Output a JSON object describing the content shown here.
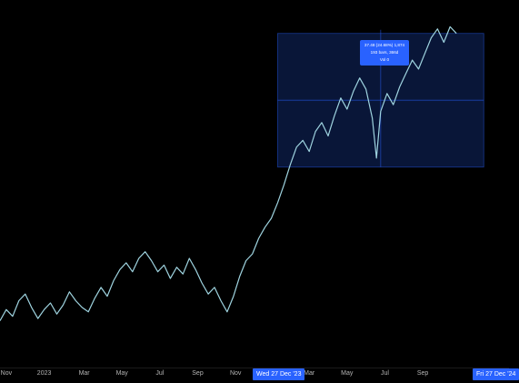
{
  "chart_data": {
    "type": "line",
    "series": [
      {
        "color": "#9fd4e0",
        "points": [
          [
            0,
            5.1
          ],
          [
            1.5,
            5.6
          ],
          [
            3,
            5.3
          ],
          [
            4.5,
            6.0
          ],
          [
            6,
            6.3
          ],
          [
            7.5,
            5.7
          ],
          [
            9,
            5.2
          ],
          [
            10.5,
            5.6
          ],
          [
            12,
            5.9
          ],
          [
            13.5,
            5.4
          ],
          [
            15,
            5.8
          ],
          [
            16.5,
            6.4
          ],
          [
            18,
            6.0
          ],
          [
            19.5,
            5.7
          ],
          [
            21,
            5.5
          ],
          [
            22.5,
            6.1
          ],
          [
            24,
            6.6
          ],
          [
            25.5,
            6.2
          ],
          [
            27,
            6.9
          ],
          [
            28.5,
            7.4
          ],
          [
            30,
            7.7
          ],
          [
            31.5,
            7.3
          ],
          [
            33,
            7.9
          ],
          [
            34.5,
            8.2
          ],
          [
            36,
            7.8
          ],
          [
            37.5,
            7.3
          ],
          [
            39,
            7.6
          ],
          [
            40.5,
            7.0
          ],
          [
            42,
            7.5
          ],
          [
            43.5,
            7.2
          ],
          [
            45,
            7.9
          ],
          [
            46.5,
            7.4
          ],
          [
            48,
            6.8
          ],
          [
            49.5,
            6.3
          ],
          [
            51,
            6.6
          ],
          [
            52.5,
            6.0
          ],
          [
            54,
            5.5
          ],
          [
            55.5,
            6.2
          ],
          [
            57,
            7.1
          ],
          [
            58.5,
            7.8
          ],
          [
            60,
            8.1
          ],
          [
            61.5,
            8.8
          ],
          [
            63,
            9.3
          ],
          [
            64.5,
            9.7
          ],
          [
            66,
            10.4
          ],
          [
            67.5,
            11.2
          ],
          [
            69,
            12.1
          ],
          [
            70.5,
            12.9
          ],
          [
            72,
            13.2
          ],
          [
            73.5,
            12.7
          ],
          [
            75,
            13.6
          ],
          [
            76.5,
            14.0
          ],
          [
            78,
            13.4
          ],
          [
            79.5,
            14.3
          ],
          [
            81,
            15.1
          ],
          [
            82.5,
            14.6
          ],
          [
            84,
            15.4
          ],
          [
            85.5,
            16.0
          ],
          [
            87,
            15.5
          ],
          [
            88.5,
            14.2
          ],
          [
            89.5,
            12.4
          ],
          [
            90.5,
            14.5
          ],
          [
            92,
            15.3
          ],
          [
            93.5,
            14.8
          ],
          [
            95,
            15.6
          ],
          [
            96.5,
            16.2
          ],
          [
            98,
            16.8
          ],
          [
            99.5,
            16.4
          ],
          [
            101,
            17.1
          ],
          [
            102.5,
            17.8
          ],
          [
            104,
            18.2
          ],
          [
            105.5,
            17.6
          ],
          [
            107,
            18.3
          ],
          [
            108.5,
            18.0
          ]
        ]
      }
    ],
    "x_ticks": [
      {
        "label": "Nov",
        "x": 1.5
      },
      {
        "label": "2023",
        "x": 10.5
      },
      {
        "label": "Mar",
        "x": 20
      },
      {
        "label": "May",
        "x": 29
      },
      {
        "label": "Jul",
        "x": 38
      },
      {
        "label": "Sep",
        "x": 47
      },
      {
        "label": "Nov",
        "x": 56
      },
      {
        "label": "Mar",
        "x": 73.5
      },
      {
        "label": "May",
        "x": 82.5
      },
      {
        "label": "Jul",
        "x": 91.5
      },
      {
        "label": "Sep",
        "x": 100.5
      }
    ],
    "measure_range": {
      "x": [
        66,
        115
      ],
      "y": [
        12.0,
        18.0
      ]
    },
    "x_range": [
      0,
      121
    ],
    "y_range": [
      3.0,
      19.5
    ],
    "grid": false,
    "background": "#000000",
    "measure_color": "#2962ff"
  },
  "date_flags": {
    "start": "Wed 27 Dec '23",
    "end": "Fri 27 Dec '24"
  },
  "measure_tip": {
    "line1": "37.48 (24.68%) 1,874",
    "line2": "193 bars, 366d",
    "line3": "Vol 0"
  }
}
